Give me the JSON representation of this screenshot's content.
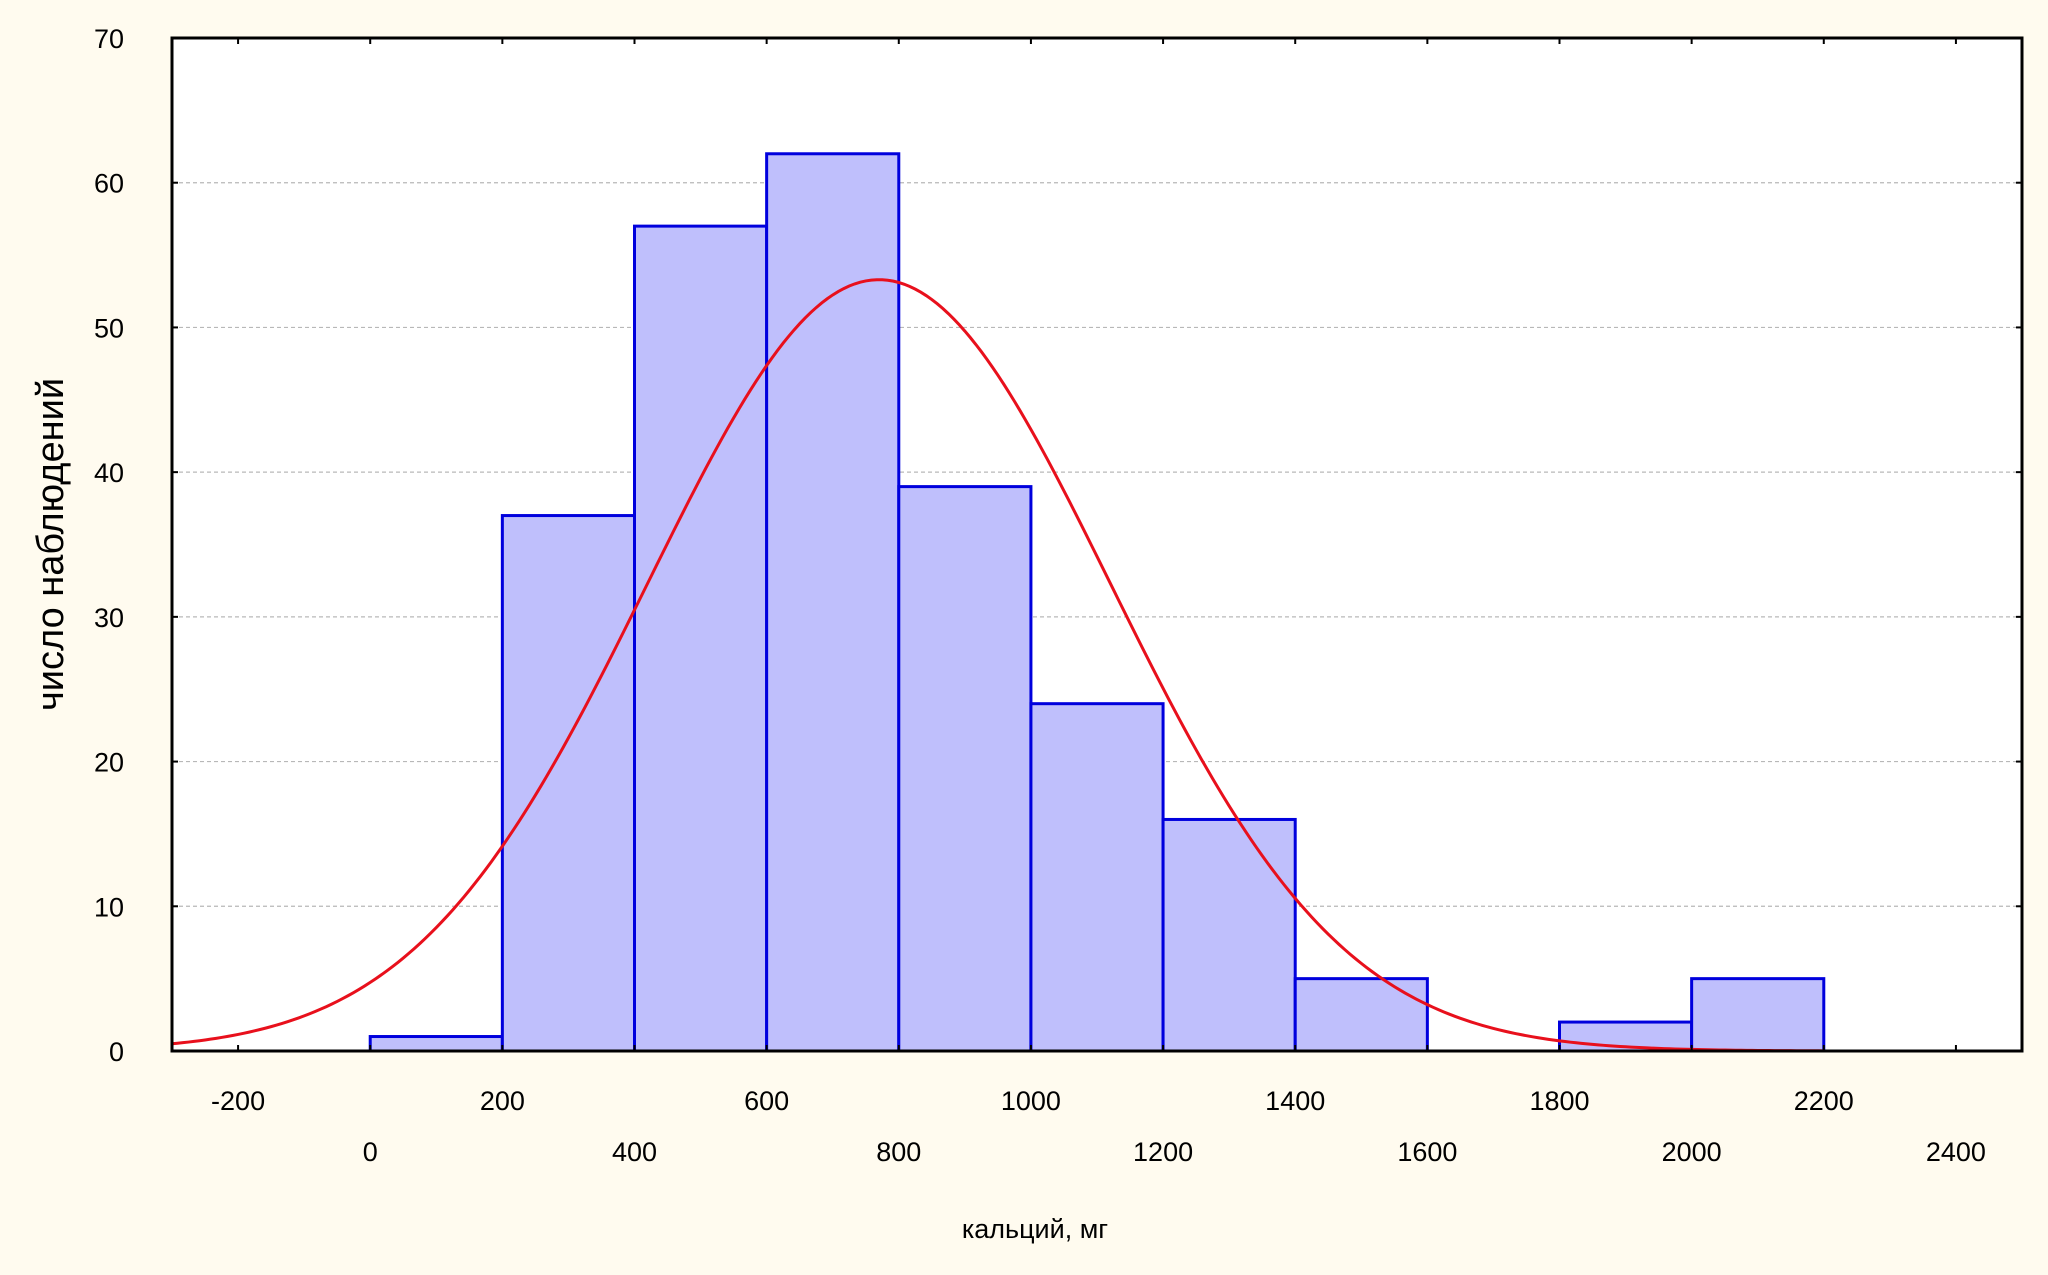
{
  "chart_data": {
    "type": "bar",
    "subtype": "histogram-with-normal-curve",
    "xlabel": "кальций, мг",
    "ylabel": "число наблюдений",
    "xlim": [
      -300,
      2500
    ],
    "ylim": [
      0,
      70
    ],
    "y_ticks": [
      0,
      10,
      20,
      30,
      40,
      50,
      60,
      70
    ],
    "x_ticks_row1": [
      -200,
      200,
      600,
      1000,
      1400,
      1800,
      2200
    ],
    "x_ticks_row2": [
      0,
      400,
      800,
      1200,
      1600,
      2000,
      2400
    ],
    "x_minor_ticks": [
      -200,
      0,
      200,
      400,
      600,
      800,
      1000,
      1200,
      1400,
      1600,
      1800,
      2000,
      2200,
      2400
    ],
    "grid": {
      "horizontal": true,
      "vertical": false
    },
    "bins": [
      {
        "start": 0,
        "end": 200,
        "count": 1
      },
      {
        "start": 200,
        "end": 400,
        "count": 37
      },
      {
        "start": 400,
        "end": 600,
        "count": 57
      },
      {
        "start": 600,
        "end": 800,
        "count": 62
      },
      {
        "start": 800,
        "end": 1000,
        "count": 39
      },
      {
        "start": 1000,
        "end": 1200,
        "count": 24
      },
      {
        "start": 1200,
        "end": 1400,
        "count": 16
      },
      {
        "start": 1400,
        "end": 1600,
        "count": 5
      },
      {
        "start": 1600,
        "end": 1800,
        "count": 0
      },
      {
        "start": 1800,
        "end": 2000,
        "count": 2
      },
      {
        "start": 2000,
        "end": 2200,
        "count": 5
      }
    ],
    "normal_curve": {
      "peak_x": 770,
      "peak_y": 53.3,
      "sigma": 350,
      "range": [
        -300,
        2200
      ]
    },
    "colors": {
      "background": "#fffbef",
      "plot_background": "#ffffff",
      "bar_fill": "#bfbffc",
      "bar_stroke": "#0000dd",
      "curve": "#e8101c",
      "grid": "#b8b8b8",
      "axis": "#000000"
    }
  }
}
